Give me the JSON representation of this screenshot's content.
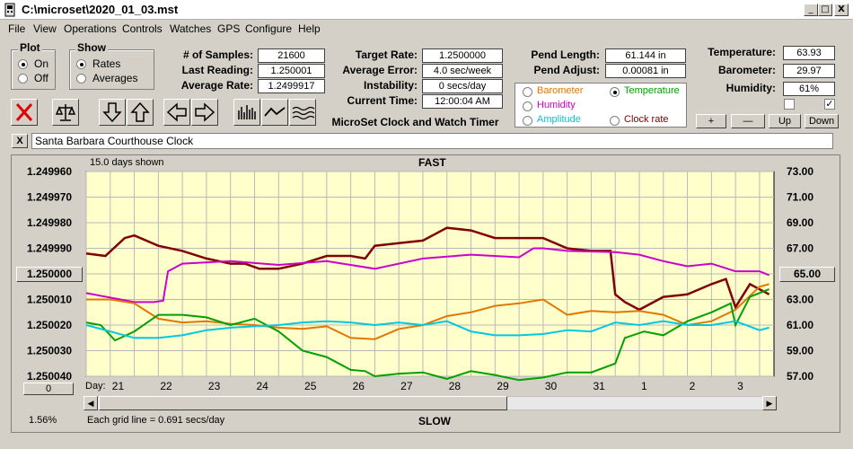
{
  "window": {
    "title": "C:\\microset\\2020_01_03.mst",
    "min": "_",
    "max": "□",
    "close": "X"
  },
  "menu": [
    "File",
    "View",
    "Operations",
    "Controls",
    "Watches",
    "GPS",
    "Configure",
    "Help"
  ],
  "plot": {
    "label": "Plot",
    "on": "On",
    "off": "Off"
  },
  "show": {
    "label": "Show",
    "rates": "Rates",
    "averages": "Averages"
  },
  "stats": {
    "samples_label": "# of Samples:",
    "samples": "21600",
    "last_label": "Last Reading:",
    "last": "1.250001",
    "avg_label": "Average Rate:",
    "avg": "1.2499917",
    "target_label": "Target Rate:",
    "target": "1.2500000",
    "err_label": "Average Error:",
    "err": "4.0 sec/week",
    "inst_label": "Instability:",
    "inst": "0 secs/day",
    "time_label": "Current Time:",
    "time": "12:00:04 AM",
    "timer_title": "MicroSet Clock and Watch Timer",
    "pendlen_label": "Pend Length:",
    "pendlen": "61.144 in",
    "pendadj_label": "Pend Adjust:",
    "pendadj": "0.00081 in",
    "temp_label": "Temperature:",
    "temp": "63.93",
    "baro_label": "Barometer:",
    "baro": "29.97",
    "hum_label": "Humidity:",
    "hum": "61%"
  },
  "sensors": {
    "barometer": "Barometer",
    "temperature": "Temperature",
    "humidity": "Humidity",
    "amplitude": "Amplitude",
    "clock_rate": "Clock rate",
    "colors": {
      "barometer": "#e07800",
      "temperature": "#00a000",
      "humidity": "#cc00cc",
      "amplitude": "#00c8e0",
      "clock_rate": "#800000"
    }
  },
  "adjust": {
    "plus": "+",
    "minus": "—",
    "up": "Up",
    "down": "Down"
  },
  "note": {
    "close": "X",
    "text": "Santa Barbara Courthouse Clock"
  },
  "chart_header": {
    "days_shown": "15.0 days shown",
    "fast": "FAST",
    "slow": "SLOW",
    "grid": "Each grid line = 0.691 secs/day",
    "percent": "1.56%",
    "day": "Day:",
    "left_box": "1.250000",
    "right_box": "65.00",
    "bottom_box": "0"
  },
  "chart_data": {
    "type": "line",
    "left_axis": {
      "ticks": [
        "1.249960",
        "1.249970",
        "1.249980",
        "1.249990",
        "1.250000",
        "1.250010",
        "1.250020",
        "1.250030",
        "1.250040"
      ],
      "range": [
        1.24996,
        1.25004
      ]
    },
    "right_axis": {
      "ticks": [
        "73.00",
        "71.00",
        "69.00",
        "67.00",
        "65.00",
        "63.00",
        "61.00",
        "59.00",
        "57.00"
      ],
      "range": [
        57,
        73
      ]
    },
    "days": [
      "21",
      "22",
      "23",
      "24",
      "25",
      "26",
      "27",
      "28",
      "29",
      "30",
      "31",
      "1",
      "2",
      "3"
    ],
    "x_range": [
      0,
      14.3
    ],
    "series": [
      {
        "color": "#800000",
        "x": [
          0,
          0.4,
          0.8,
          1,
          1.5,
          2,
          2.5,
          3,
          3.3,
          3.6,
          4,
          4.5,
          5,
          5.5,
          5.8,
          6,
          6.5,
          7,
          7.5,
          8,
          8.5,
          9,
          9.5,
          10,
          10.5,
          10.9,
          11,
          11.2,
          11.5,
          12,
          12.5,
          13,
          13.3,
          13.5,
          13.8,
          14.2
        ],
        "y": [
          1.249992,
          1.249993,
          1.249986,
          1.249985,
          1.249989,
          1.249991,
          1.249994,
          1.249996,
          1.249996,
          1.249998,
          1.249998,
          1.249996,
          1.249993,
          1.249993,
          1.249994,
          1.249989,
          1.249988,
          1.249987,
          1.249982,
          1.249983,
          1.249986,
          1.249986,
          1.249986,
          1.24999,
          1.249991,
          1.249991,
          1.250008,
          1.250011,
          1.250014,
          1.250009,
          1.250008,
          1.250004,
          1.250002,
          1.250013,
          1.250004,
          1.250008
        ]
      },
      {
        "color": "#cc00cc",
        "x": [
          0,
          1,
          1.4,
          1.6,
          1.7,
          2,
          3,
          4,
          5,
          6,
          7,
          8,
          9,
          9.3,
          9.5,
          10,
          11,
          11.5,
          12,
          12.5,
          13,
          13.5,
          14,
          14.2
        ],
        "y": [
          63.5,
          62.8,
          62.8,
          62.9,
          65.2,
          65.8,
          66.0,
          65.7,
          66.0,
          65.4,
          66.2,
          66.5,
          66.3,
          67.0,
          67.0,
          66.8,
          66.7,
          66.5,
          66.0,
          65.6,
          65.8,
          65.2,
          65.2,
          64.9
        ]
      },
      {
        "color": "#e07800",
        "x": [
          0,
          0.5,
          1,
          1.5,
          2,
          2.5,
          3,
          3.5,
          4,
          4.5,
          5,
          5.5,
          6,
          6.5,
          7,
          7.5,
          8,
          8.5,
          9,
          9.5,
          10,
          10.5,
          11,
          11.5,
          12,
          12.5,
          13,
          13.5,
          14,
          14.2
        ],
        "y": [
          63.0,
          63.0,
          62.7,
          61.5,
          61.2,
          61.3,
          61.1,
          61.0,
          60.8,
          60.7,
          60.9,
          60.0,
          59.9,
          60.7,
          61.0,
          61.7,
          62.0,
          62.5,
          62.7,
          63.0,
          61.8,
          62.1,
          62.0,
          62.1,
          61.8,
          61.0,
          61.3,
          62.2,
          64.0,
          64.2
        ]
      },
      {
        "color": "#00a000",
        "x": [
          0,
          0.3,
          0.6,
          1,
          1.5,
          2,
          2.5,
          3,
          3.5,
          4,
          4.5,
          5,
          5.5,
          5.8,
          6,
          6.5,
          7,
          7.5,
          8,
          8.5,
          9,
          9.5,
          10,
          10.5,
          11,
          11.2,
          11.6,
          12,
          12.5,
          13,
          13.4,
          13.5,
          13.8,
          14.2
        ],
        "y": [
          61.2,
          61.0,
          59.8,
          60.5,
          61.8,
          61.8,
          61.6,
          61.0,
          61.5,
          60.5,
          59.0,
          58.5,
          57.5,
          57.4,
          57.0,
          57.2,
          57.3,
          56.8,
          57.4,
          57.1,
          56.7,
          56.9,
          57.3,
          57.3,
          58.0,
          60.0,
          60.5,
          60.2,
          61.3,
          62.0,
          62.7,
          61.0,
          63.2,
          63.8
        ]
      },
      {
        "color": "#00c8e0",
        "x": [
          0,
          0.5,
          1,
          1.5,
          2,
          2.5,
          3,
          3.5,
          4,
          4.5,
          5,
          5.5,
          6,
          6.5,
          7,
          7.5,
          8,
          8.5,
          9,
          9.5,
          10,
          10.5,
          11,
          11.5,
          12,
          12.5,
          13,
          13.5,
          14,
          14.2
        ],
        "y": [
          61.0,
          60.5,
          60.0,
          60.0,
          60.2,
          60.6,
          60.8,
          60.9,
          61.0,
          61.2,
          61.3,
          61.2,
          61.0,
          61.2,
          61.0,
          61.3,
          60.5,
          60.2,
          60.2,
          60.3,
          60.6,
          60.5,
          61.2,
          61.0,
          61.3,
          61.0,
          61.0,
          61.3,
          60.6,
          60.8
        ]
      }
    ]
  }
}
